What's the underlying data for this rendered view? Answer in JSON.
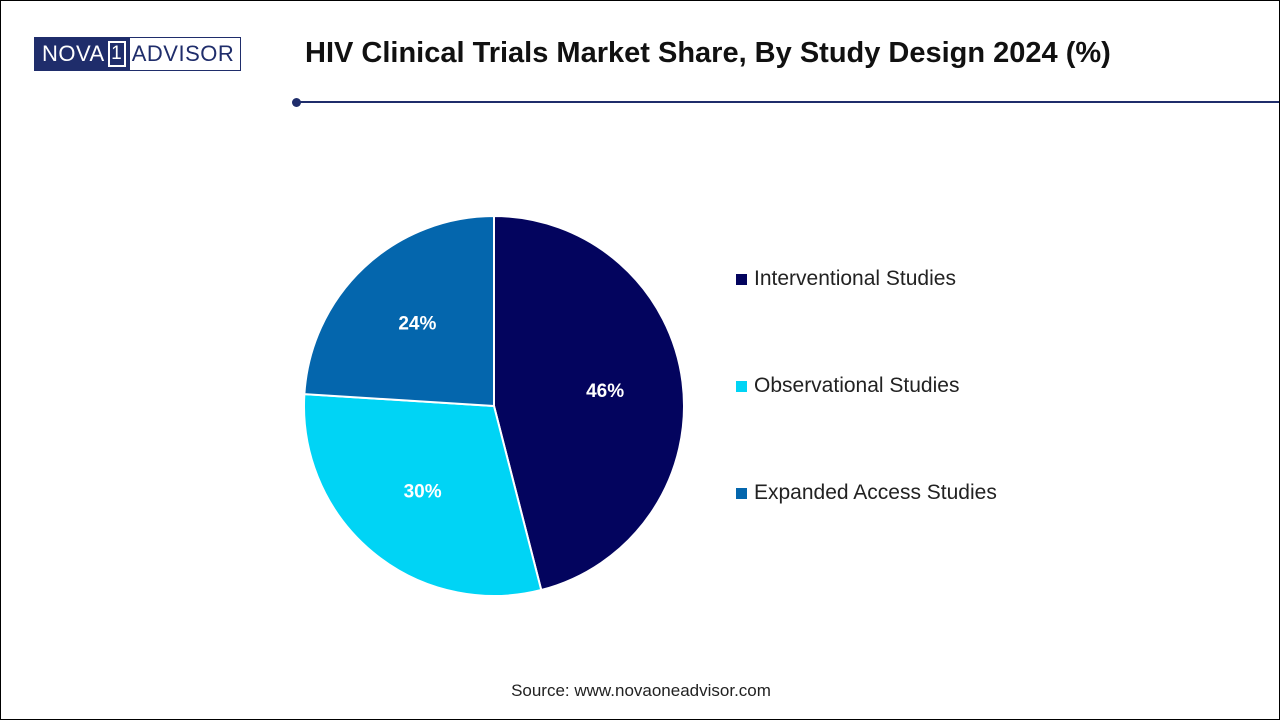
{
  "logo": {
    "left_text": "NOVA",
    "one_text": "1",
    "right_text": "ADVISOR"
  },
  "title": "HIV Clinical Trials Market Share, By Study Design 2024 (%)",
  "source": "Source: www.novaoneadvisor.com",
  "colors": {
    "brand": "#1f2d6b",
    "interventional": "#03045e",
    "observational": "#00d4f5",
    "expanded": "#0466ad"
  },
  "chart_data": {
    "type": "pie",
    "title": "HIV Clinical Trials Market Share, By Study Design 2024 (%)",
    "categories": [
      "Interventional Studies",
      "Observational Studies",
      "Expanded Access Studies"
    ],
    "values": [
      46,
      30,
      24
    ],
    "labels": [
      "46%",
      "30%",
      "24%"
    ],
    "colors": [
      "#03045e",
      "#00d4f5",
      "#0466ad"
    ],
    "legend_position": "right",
    "start": "top",
    "direction": "clockwise"
  }
}
